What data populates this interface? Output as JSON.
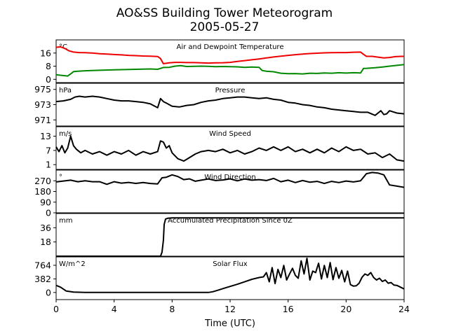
{
  "chart_data": {
    "type": "line",
    "title": "AO&SS Building Tower Meteorogram",
    "subtitle": "2005-05-27",
    "xlabel": "Time (UTC)",
    "xlim": [
      0,
      24
    ],
    "xticks": [
      "0",
      "4",
      "8",
      "12",
      "16",
      "20",
      "24"
    ],
    "panels": [
      {
        "title": "Air and Dewpoint Temperature",
        "unit": "°C",
        "ylim": [
          -2,
          24
        ],
        "yticks": [
          "0",
          "8",
          "16"
        ],
        "series": [
          {
            "color": "#ee0000",
            "x": [
              0,
              0.3,
              0.6,
              0.9,
              1.2,
              1.6,
              2.0,
              2.5,
              3.0,
              3.5,
              4.0,
              4.5,
              5.0,
              5.5,
              6.0,
              6.5,
              7.0,
              7.2,
              7.4,
              7.8,
              8.2,
              8.6,
              9.0,
              9.5,
              10.0,
              10.5,
              11.0,
              11.5,
              12.0,
              12.5,
              13.0,
              13.5,
              14.0,
              14.5,
              15.0,
              15.5,
              16.0,
              16.5,
              17.0,
              17.5,
              18.0,
              18.5,
              19.0,
              19.5,
              20.0,
              20.5,
              21.0,
              21.2,
              21.4,
              21.8,
              22.2,
              22.6,
              23.0,
              23.4,
              23.8,
              24.0
            ],
            "values": [
              19.5,
              19.8,
              18.8,
              17.3,
              16.6,
              16.3,
              16.2,
              16.0,
              15.6,
              15.4,
              15.1,
              14.9,
              14.6,
              14.4,
              14.2,
              14.1,
              13.9,
              12.6,
              9.5,
              10.0,
              10.3,
              10.3,
              10.2,
              10.2,
              10.0,
              9.9,
              10.0,
              10.1,
              10.3,
              10.9,
              11.4,
              11.9,
              12.4,
              13.0,
              13.6,
              14.1,
              14.6,
              15.0,
              15.4,
              15.7,
              15.9,
              16.1,
              16.2,
              16.3,
              16.3,
              16.5,
              16.6,
              15.2,
              14.0,
              14.0,
              13.5,
              13.0,
              13.3,
              13.8,
              14.0,
              14.0
            ]
          },
          {
            "color": "#008800",
            "x": [
              0,
              0.4,
              0.8,
              1.0,
              1.2,
              1.5,
              2.0,
              3.0,
              4.0,
              5.0,
              6.0,
              6.5,
              7.0,
              7.4,
              7.8,
              8.2,
              8.6,
              9.0,
              9.5,
              10.0,
              10.5,
              11.0,
              11.5,
              12.0,
              12.5,
              13.0,
              13.5,
              14.0,
              14.2,
              14.5,
              15.0,
              15.5,
              16.0,
              16.5,
              17.0,
              17.5,
              18.0,
              18.5,
              19.0,
              19.5,
              20.0,
              20.5,
              21.0,
              21.2,
              21.4,
              22.0,
              22.5,
              23.0,
              23.5,
              24.0
            ],
            "values": [
              2.8,
              2.4,
              2.0,
              3.3,
              4.7,
              4.9,
              5.2,
              5.5,
              5.8,
              6.0,
              6.2,
              6.3,
              6.1,
              7.2,
              7.3,
              8.0,
              8.3,
              7.8,
              7.9,
              8.0,
              7.9,
              7.7,
              7.8,
              7.7,
              7.6,
              7.3,
              7.5,
              7.3,
              5.4,
              4.9,
              4.6,
              3.7,
              3.4,
              3.5,
              3.3,
              3.7,
              3.6,
              3.9,
              3.7,
              4.0,
              3.8,
              4.0,
              3.9,
              6.6,
              6.7,
              7.1,
              7.5,
              8.0,
              8.5,
              9.0
            ]
          }
        ]
      },
      {
        "title": "Pressure",
        "unit": "hPa",
        "ylim": [
          970.2,
          975.8
        ],
        "yticks": [
          "971",
          "973",
          "975"
        ],
        "series": [
          {
            "color": "#000000",
            "x": [
              0,
              0.5,
              1.0,
              1.3,
              1.6,
              2.0,
              2.5,
              3.0,
              3.5,
              4.0,
              4.5,
              5.0,
              5.5,
              6.0,
              6.5,
              7.0,
              7.2,
              7.4,
              7.6,
              8.0,
              8.5,
              9.0,
              9.5,
              10.0,
              10.5,
              11.0,
              11.5,
              12.0,
              12.5,
              13.0,
              13.5,
              14.0,
              14.5,
              15.0,
              15.5,
              16.0,
              16.5,
              17.0,
              17.5,
              18.0,
              18.5,
              19.0,
              19.5,
              20.0,
              20.5,
              21.0,
              21.5,
              22.0,
              22.2,
              22.4,
              22.6,
              22.8,
              23.0,
              23.5,
              24.0
            ],
            "values": [
              973.4,
              973.5,
              973.7,
              974.0,
              974.1,
              974.0,
              974.1,
              974.0,
              973.8,
              973.6,
              973.5,
              973.5,
              973.4,
              973.3,
              973.1,
              972.6,
              973.8,
              973.4,
              973.2,
              972.8,
              972.7,
              972.9,
              973.0,
              973.3,
              973.5,
              973.6,
              973.8,
              973.9,
              974.0,
              974.0,
              973.9,
              973.8,
              973.9,
              973.7,
              973.6,
              973.3,
              973.2,
              973.0,
              972.9,
              972.7,
              972.6,
              972.4,
              972.3,
              972.2,
              972.1,
              972.0,
              972.0,
              971.6,
              971.9,
              972.2,
              971.7,
              971.8,
              972.2,
              971.9,
              971.8
            ]
          }
        ]
      },
      {
        "title": "Wind Speed",
        "unit": "m/s",
        "ylim": [
          -1,
          17
        ],
        "yticks": [
          "1",
          "7",
          "13"
        ],
        "series": [
          {
            "color": "#000000",
            "x": [
              0,
              0.2,
              0.4,
              0.6,
              0.8,
              1.0,
              1.2,
              1.4,
              1.7,
              2.0,
              2.5,
              3.0,
              3.5,
              4.0,
              4.5,
              5.0,
              5.5,
              6.0,
              6.5,
              7.0,
              7.2,
              7.4,
              7.6,
              7.8,
              8.0,
              8.4,
              8.8,
              9.2,
              9.6,
              10.0,
              10.5,
              11.0,
              11.5,
              12.0,
              12.5,
              13.0,
              13.5,
              14.0,
              14.5,
              15.0,
              15.5,
              16.0,
              16.5,
              17.0,
              17.5,
              18.0,
              18.5,
              19.0,
              19.5,
              20.0,
              20.5,
              21.0,
              21.5,
              22.0,
              22.5,
              23.0,
              23.5,
              24.0
            ],
            "values": [
              8.5,
              6.5,
              9.0,
              6.0,
              8.0,
              13.0,
              9.0,
              7.5,
              6.0,
              7.0,
              5.5,
              6.5,
              5.0,
              6.5,
              5.5,
              7.0,
              5.0,
              6.5,
              5.5,
              6.5,
              11.0,
              10.5,
              8.0,
              9.0,
              6.0,
              3.5,
              2.5,
              4.0,
              5.5,
              6.5,
              7.0,
              6.5,
              7.5,
              6.0,
              7.0,
              5.5,
              6.5,
              8.0,
              7.0,
              8.5,
              7.0,
              8.5,
              6.5,
              7.5,
              6.0,
              7.5,
              6.0,
              8.0,
              6.5,
              8.5,
              7.0,
              7.5,
              5.5,
              6.0,
              4.0,
              5.5,
              3.0,
              2.5
            ]
          }
        ]
      },
      {
        "title": "Wind Direction",
        "unit": "°",
        "ylim": [
          0,
          360
        ],
        "yticks": [
          "0",
          "90",
          "180",
          "270"
        ],
        "series": [
          {
            "color": "#000000",
            "x": [
              0,
              0.5,
              1.0,
              1.5,
              2.0,
              2.5,
              3.0,
              3.5,
              4.0,
              4.5,
              5.0,
              5.5,
              6.0,
              6.5,
              7.0,
              7.3,
              7.6,
              8.0,
              8.4,
              8.8,
              9.2,
              9.6,
              10.0,
              10.5,
              11.0,
              11.5,
              12.0,
              12.5,
              13.0,
              13.5,
              14.0,
              14.5,
              15.0,
              15.5,
              16.0,
              16.5,
              17.0,
              17.5,
              18.0,
              18.5,
              19.0,
              19.5,
              20.0,
              20.5,
              21.0,
              21.4,
              21.8,
              22.2,
              22.6,
              23.0,
              23.5,
              24.0
            ],
            "values": [
              260,
              268,
              275,
              262,
              270,
              262,
              262,
              240,
              262,
              250,
              256,
              248,
              255,
              247,
              244,
              295,
              300,
              320,
              306,
              280,
              286,
              266,
              275,
              285,
              272,
              277,
              286,
              270,
              285,
              275,
              280,
              272,
              290,
              262,
              275,
              255,
              272,
              258,
              265,
              247,
              265,
              255,
              268,
              260,
              270,
              330,
              340,
              335,
              320,
              235,
              225,
              215
            ]
          }
        ]
      },
      {
        "title": "Accumulated Precipitation Since 0Z",
        "unit": "mm",
        "ylim": [
          0,
          54
        ],
        "yticks": [
          "18",
          "36"
        ],
        "series": [
          {
            "color": "#000000",
            "x": [
              0,
              7.2,
              7.3,
              7.4,
              7.45,
              7.55,
              7.7,
              8.0,
              24.0
            ],
            "values": [
              0,
              0,
              5,
              20,
              40,
              47,
              48,
              48.5,
              48.5
            ]
          }
        ]
      },
      {
        "title": "Solar Flux",
        "unit": "W/m^2",
        "ylim": [
          -200,
          1000
        ],
        "yticks": [
          "0",
          "382",
          "764"
        ],
        "series": [
          {
            "color": "#000000",
            "x": [
              0,
              0.3,
              0.7,
              1.2,
              2.0,
              4.0,
              6.0,
              8.0,
              10.0,
              10.5,
              10.8,
              11.2,
              11.6,
              12.0,
              12.5,
              13.0,
              13.5,
              14.0,
              14.3,
              14.5,
              14.7,
              14.9,
              15.1,
              15.3,
              15.5,
              15.7,
              15.9,
              16.1,
              16.3,
              16.5,
              16.7,
              16.9,
              17.1,
              17.3,
              17.5,
              17.7,
              17.9,
              18.1,
              18.3,
              18.5,
              18.7,
              18.9,
              19.1,
              19.3,
              19.5,
              19.7,
              19.9,
              20.1,
              20.3,
              20.5,
              20.7,
              20.9,
              21.1,
              21.3,
              21.5,
              21.7,
              21.9,
              22.1,
              22.3,
              22.5,
              22.7,
              22.9,
              23.1,
              23.3,
              23.5,
              23.7,
              24.0
            ],
            "values": [
              200,
              150,
              40,
              10,
              0,
              0,
              0,
              0,
              0,
              0,
              20,
              70,
              120,
              170,
              230,
              300,
              370,
              420,
              440,
              560,
              300,
              700,
              250,
              650,
              420,
              760,
              350,
              520,
              680,
              480,
              400,
              890,
              520,
              960,
              350,
              600,
              560,
              820,
              380,
              760,
              420,
              840,
              360,
              700,
              400,
              620,
              300,
              600,
              220,
              180,
              190,
              260,
              430,
              520,
              480,
              560,
              420,
              350,
              400,
              310,
              350,
              260,
              280,
              210,
              200,
              160,
              100
            ]
          }
        ]
      }
    ]
  }
}
